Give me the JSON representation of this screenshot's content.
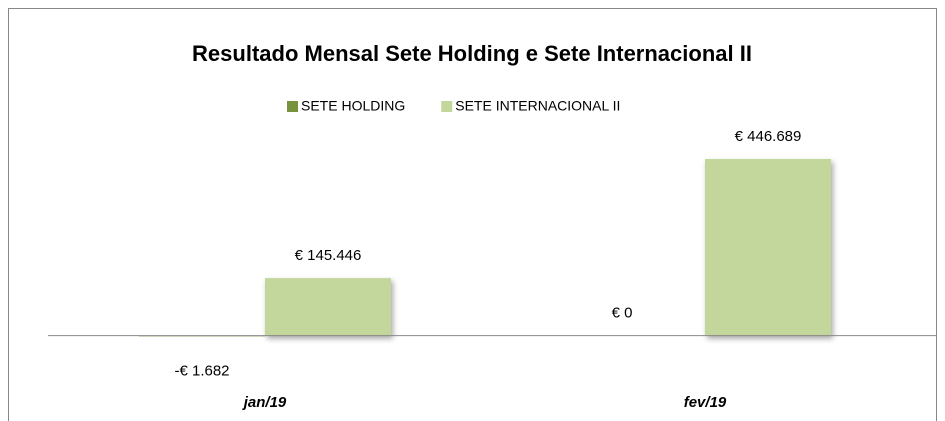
{
  "chart_data": {
    "type": "bar",
    "title": "Resultado Mensal Sete Holding e Sete Internacional II",
    "categories": [
      "jan/19",
      "fev/19"
    ],
    "series": [
      {
        "name": "SETE HOLDING",
        "color": "#77933c",
        "values": [
          -1682,
          0
        ],
        "value_labels": [
          "-€ 1.682",
          "€ 0"
        ]
      },
      {
        "name": "SETE INTERNACIONAL II",
        "color": "#c3d69b",
        "values": [
          145446,
          446689
        ],
        "value_labels": [
          "€ 145.446",
          "€ 446.689"
        ]
      }
    ],
    "ylim": [
      -150000,
      520000
    ],
    "legend": "top"
  }
}
